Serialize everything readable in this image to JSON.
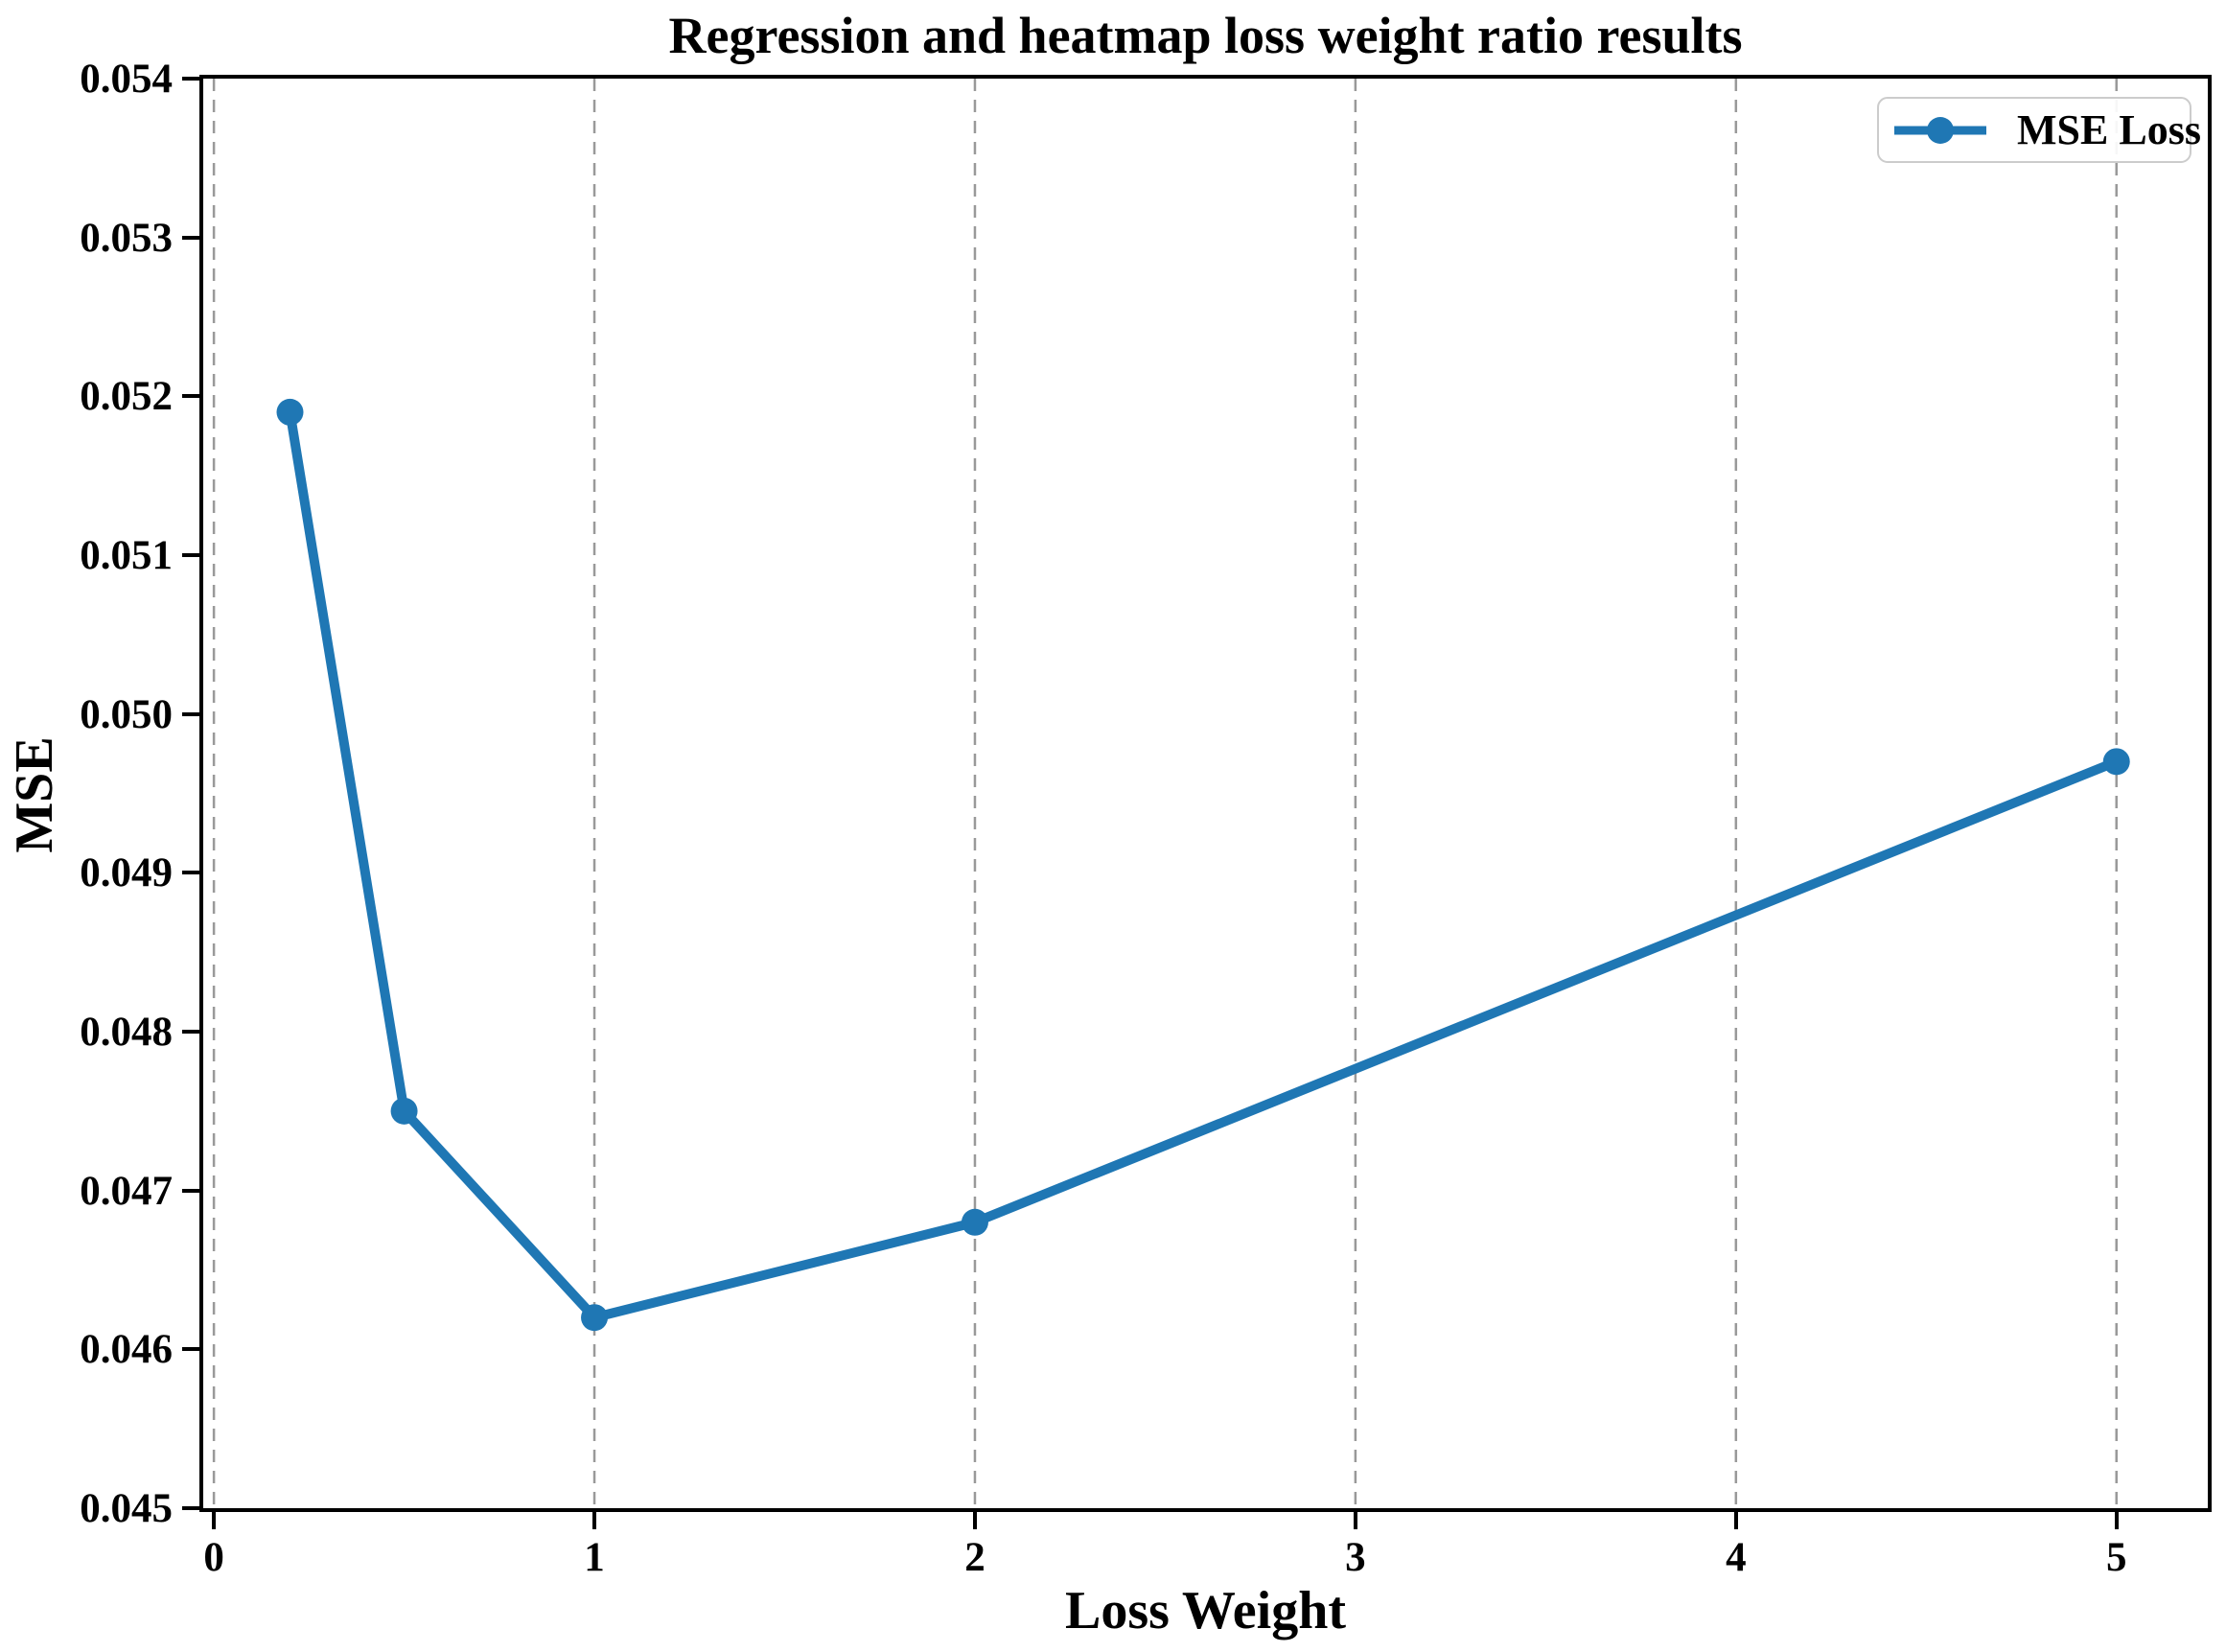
{
  "chart_data": {
    "type": "line",
    "title": "Regression and heatmap loss weight ratio results",
    "xlabel": "Loss Weight",
    "ylabel": "MSE",
    "x": [
      0.2,
      0.5,
      1,
      2,
      5
    ],
    "series": [
      {
        "name": "MSE Loss",
        "values": [
          0.0519,
          0.0475,
          0.0462,
          0.0468,
          0.0497
        ],
        "color": "#1f77b4",
        "marker": "circle"
      }
    ],
    "xlim": [
      -0.028,
      5.24
    ],
    "ylim": [
      0.045,
      0.054
    ],
    "xticks": [
      0,
      1,
      2,
      3,
      4,
      5
    ],
    "xtick_labels": [
      "0",
      "1",
      "2",
      "3",
      "4",
      "5"
    ],
    "yticks": [
      0.045,
      0.046,
      0.047,
      0.048,
      0.049,
      0.05,
      0.051,
      0.052,
      0.053,
      0.054
    ],
    "ytick_labels": [
      "0.045",
      "0.046",
      "0.047",
      "0.048",
      "0.049",
      "0.050",
      "0.051",
      "0.052",
      "0.053",
      "0.054"
    ],
    "grid": {
      "vertical": true,
      "horizontal": false,
      "style": "dashed",
      "color": "#999999"
    },
    "legend": {
      "position": "upper right",
      "entries": [
        "MSE Loss"
      ]
    },
    "colors": {
      "line": "#1f77b4",
      "grid": "#999999",
      "spine": "#000000",
      "legend_border": "#cccccc",
      "text": "#000000",
      "background": "#ffffff"
    }
  }
}
